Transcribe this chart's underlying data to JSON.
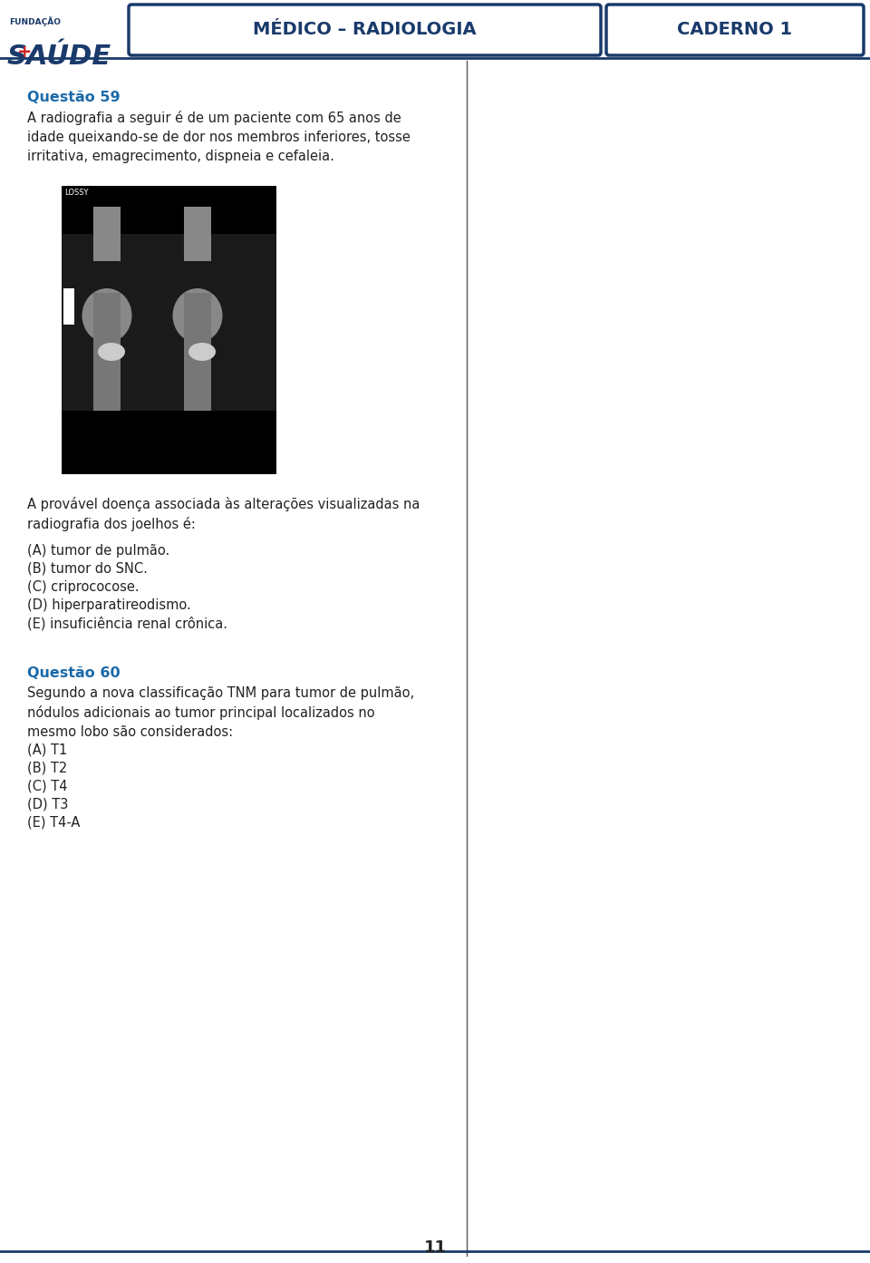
{
  "page_bg": "#ffffff",
  "header_border_color": "#1a3a6b",
  "header_text_center": "MÉDICO – RADIOLOGIA",
  "header_text_right": "CADERNO 1",
  "header_text_color": "#1a3a6b",
  "divider_color": "#1a3a6b",
  "logo_text_fundacao": "FUNDAÇÃO",
  "logo_text_saude": "SAÚDE",
  "logo_color": "#1a3a6b",
  "logo_plus_color": "#cc2222",
  "q59_title": "Questão 59",
  "q59_title_color": "#1a6aaa",
  "q59_body": "A radiografia a seguir é de um paciente com 65 anos de\nidade queixando-se de dor nos membros inferiores, tosse\nirritativa, emagrecimento, dispneia e cefaleia.",
  "q59_question": "A provável doença associada às alterações visualizadas na\nradiografia dos joelhos é:",
  "q59_options": [
    "(A) tumor de pulmão.",
    "(B) tumor do SNC.",
    "(C) criprococose.",
    "(D) hiperparatireodismo.",
    "(E) insuficiência renal crônica."
  ],
  "q60_title": "Questão 60",
  "q60_title_color": "#1a6aaa",
  "q60_body": "Segundo a nova classificação TNM para tumor de pulmão,\nnódulos adicionais ao tumor principal localizados no\nmesmo lobo são considerados:",
  "q60_options": [
    "(A) T1",
    "(B) T2",
    "(C) T4",
    "(D) T3",
    "(E) T4-A"
  ],
  "page_number": "11",
  "text_color": "#222222",
  "font_size_body": 10.5,
  "font_size_title": 11.5,
  "font_size_header": 13
}
